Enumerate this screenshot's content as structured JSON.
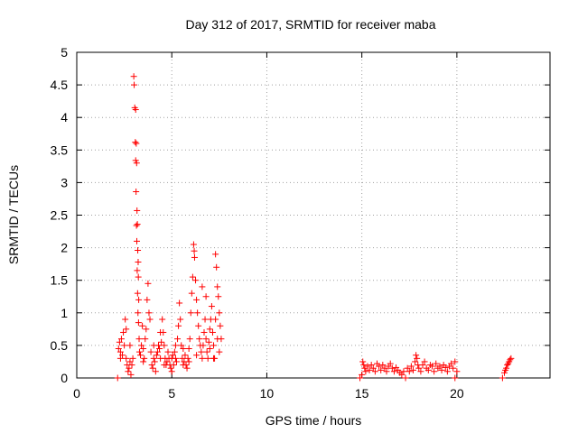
{
  "chart_data": {
    "type": "scatter",
    "title": "Day 312 of 2017, SRMTID for receiver maba",
    "xlabel": "GPS time / hours",
    "ylabel": "SRMTID / TECUs",
    "xlim": [
      0,
      24.9
    ],
    "ylim": [
      0,
      5
    ],
    "xticks": [
      0,
      5,
      10,
      15,
      20
    ],
    "xtick_labels": [
      "0",
      "5",
      "10",
      "15",
      "20"
    ],
    "yticks": [
      0,
      0.5,
      1,
      1.5,
      2,
      2.5,
      3,
      3.5,
      4,
      4.5,
      5
    ],
    "ytick_labels": [
      "0",
      "0.5",
      "1",
      "1.5",
      "2",
      "2.5",
      "3",
      "3.5",
      "4",
      "4.5",
      "5"
    ],
    "grid": true,
    "marker": "plus",
    "marker_color": "#ff0000",
    "series": [
      {
        "values": [
          [
            2.15,
            0.0
          ],
          [
            2.2,
            0.45
          ],
          [
            2.25,
            0.55
          ],
          [
            2.3,
            0.4
          ],
          [
            2.35,
            0.6
          ],
          [
            2.4,
            0.35
          ],
          [
            2.45,
            0.7
          ],
          [
            2.5,
            0.5
          ],
          [
            2.55,
            0.9
          ],
          [
            2.6,
            0.3
          ],
          [
            2.65,
            0.2
          ],
          [
            2.7,
            0.1
          ],
          [
            2.75,
            0.15
          ],
          [
            2.8,
            0.25
          ],
          [
            2.85,
            0.05
          ],
          [
            2.9,
            0.2
          ],
          [
            2.95,
            0.3
          ],
          [
            3.0,
            4.63
          ],
          [
            3.02,
            4.5
          ],
          [
            3.05,
            4.15
          ],
          [
            3.08,
            3.62
          ],
          [
            3.1,
            3.34
          ],
          [
            3.12,
            2.86
          ],
          [
            3.14,
            2.34
          ],
          [
            3.16,
            2.1
          ],
          [
            3.18,
            1.65
          ],
          [
            3.2,
            1.3
          ],
          [
            3.22,
            1.0
          ],
          [
            3.25,
            0.85
          ],
          [
            3.28,
            0.6
          ],
          [
            3.3,
            0.4
          ],
          [
            3.35,
            0.35
          ],
          [
            3.1,
            4.12
          ],
          [
            3.13,
            3.6
          ],
          [
            3.15,
            3.3
          ],
          [
            3.17,
            2.57
          ],
          [
            3.19,
            2.36
          ],
          [
            3.21,
            1.96
          ],
          [
            3.23,
            1.78
          ],
          [
            3.24,
            1.55
          ],
          [
            3.26,
            1.2
          ],
          [
            3.4,
            0.5
          ],
          [
            3.45,
            0.8
          ],
          [
            3.5,
            0.45
          ],
          [
            3.55,
            0.3
          ],
          [
            3.6,
            0.6
          ],
          [
            3.7,
            1.2
          ],
          [
            3.75,
            1.45
          ],
          [
            3.8,
            1.0
          ],
          [
            3.85,
            0.9
          ],
          [
            3.9,
            0.4
          ],
          [
            3.95,
            0.2
          ],
          [
            4.0,
            0.15
          ],
          [
            4.05,
            0.3
          ],
          [
            4.1,
            0.25
          ],
          [
            4.15,
            0.1
          ],
          [
            4.2,
            0.35
          ],
          [
            4.25,
            0.4
          ],
          [
            4.3,
            0.5
          ],
          [
            4.35,
            0.45
          ],
          [
            4.4,
            0.3
          ],
          [
            4.45,
            0.55
          ],
          [
            4.5,
            0.9
          ],
          [
            4.55,
            0.7
          ],
          [
            4.6,
            0.5
          ],
          [
            4.65,
            0.3
          ],
          [
            4.7,
            0.2
          ],
          [
            4.75,
            0.25
          ],
          [
            4.8,
            0.4
          ],
          [
            4.85,
            0.3
          ],
          [
            4.9,
            0.2
          ],
          [
            4.95,
            0.15
          ],
          [
            5.0,
            0.3
          ],
          [
            5.05,
            0.35
          ],
          [
            5.1,
            0.2
          ],
          [
            5.15,
            0.4
          ],
          [
            5.2,
            0.3
          ],
          [
            5.25,
            0.25
          ],
          [
            5.3,
            0.6
          ],
          [
            5.35,
            0.8
          ],
          [
            5.4,
            1.15
          ],
          [
            5.45,
            0.9
          ],
          [
            5.5,
            0.5
          ],
          [
            5.55,
            0.3
          ],
          [
            5.6,
            0.2
          ],
          [
            5.65,
            0.25
          ],
          [
            5.7,
            0.35
          ],
          [
            5.75,
            0.2
          ],
          [
            5.8,
            0.15
          ],
          [
            5.85,
            0.3
          ],
          [
            5.9,
            0.45
          ],
          [
            5.95,
            0.6
          ],
          [
            6.0,
            1.0
          ],
          [
            6.05,
            1.3
          ],
          [
            6.1,
            1.55
          ],
          [
            6.15,
            2.05
          ],
          [
            6.18,
            1.95
          ],
          [
            6.2,
            1.85
          ],
          [
            6.25,
            1.5
          ],
          [
            6.3,
            1.2
          ],
          [
            6.35,
            1.0
          ],
          [
            6.4,
            0.8
          ],
          [
            6.45,
            0.6
          ],
          [
            6.5,
            0.5
          ],
          [
            6.55,
            0.4
          ],
          [
            6.6,
            0.3
          ],
          [
            6.65,
            0.5
          ],
          [
            6.7,
            0.7
          ],
          [
            6.75,
            0.9
          ],
          [
            6.8,
            0.6
          ],
          [
            6.85,
            0.4
          ],
          [
            6.9,
            0.3
          ],
          [
            6.95,
            0.55
          ],
          [
            7.0,
            0.75
          ],
          [
            7.05,
            0.9
          ],
          [
            7.1,
            1.1
          ],
          [
            7.15,
            0.7
          ],
          [
            7.2,
            0.5
          ],
          [
            7.25,
            0.3
          ],
          [
            7.3,
            1.9
          ],
          [
            7.35,
            1.7
          ],
          [
            7.4,
            1.4
          ],
          [
            7.45,
            1.25
          ],
          [
            7.5,
            1.0
          ],
          [
            7.55,
            0.8
          ],
          [
            7.6,
            0.6
          ],
          [
            2.3,
            0.3
          ],
          [
            2.6,
            0.75
          ],
          [
            2.8,
            0.5
          ],
          [
            3.5,
            0.25
          ],
          [
            3.65,
            0.75
          ],
          [
            4.05,
            0.5
          ],
          [
            4.4,
            0.7
          ],
          [
            4.6,
            0.2
          ],
          [
            5.0,
            0.1
          ],
          [
            5.2,
            0.5
          ],
          [
            5.6,
            0.45
          ],
          [
            5.9,
            0.25
          ],
          [
            6.3,
            0.35
          ],
          [
            6.6,
            1.4
          ],
          [
            6.8,
            1.25
          ],
          [
            7.0,
            0.45
          ],
          [
            7.2,
            0.3
          ],
          [
            7.4,
            0.6
          ],
          [
            7.5,
            0.4
          ],
          [
            7.3,
            0.9
          ],
          [
            14.9,
            0.0
          ],
          [
            15.0,
            0.05
          ],
          [
            15.05,
            0.25
          ],
          [
            15.1,
            0.2
          ],
          [
            15.15,
            0.15
          ],
          [
            15.2,
            0.1
          ],
          [
            15.3,
            0.18
          ],
          [
            15.4,
            0.12
          ],
          [
            15.5,
            0.2
          ],
          [
            15.6,
            0.15
          ],
          [
            15.7,
            0.1
          ],
          [
            15.8,
            0.22
          ],
          [
            15.9,
            0.18
          ],
          [
            16.0,
            0.12
          ],
          [
            16.1,
            0.2
          ],
          [
            16.2,
            0.15
          ],
          [
            16.3,
            0.1
          ],
          [
            16.4,
            0.18
          ],
          [
            16.5,
            0.22
          ],
          [
            16.6,
            0.15
          ],
          [
            16.7,
            0.1
          ],
          [
            16.8,
            0.16
          ],
          [
            16.9,
            0.12
          ],
          [
            17.0,
            0.08
          ],
          [
            17.1,
            0.05
          ],
          [
            17.2,
            0.1
          ],
          [
            17.3,
            0.0
          ],
          [
            17.4,
            0.15
          ],
          [
            17.5,
            0.1
          ],
          [
            17.6,
            0.18
          ],
          [
            17.7,
            0.12
          ],
          [
            17.8,
            0.25
          ],
          [
            17.85,
            0.35
          ],
          [
            17.9,
            0.3
          ],
          [
            17.95,
            0.2
          ],
          [
            18.0,
            0.15
          ],
          [
            18.1,
            0.1
          ],
          [
            18.2,
            0.2
          ],
          [
            18.3,
            0.25
          ],
          [
            18.4,
            0.15
          ],
          [
            18.5,
            0.12
          ],
          [
            18.6,
            0.2
          ],
          [
            18.7,
            0.18
          ],
          [
            18.8,
            0.1
          ],
          [
            18.9,
            0.22
          ],
          [
            19.0,
            0.15
          ],
          [
            19.1,
            0.18
          ],
          [
            19.2,
            0.12
          ],
          [
            19.3,
            0.2
          ],
          [
            19.4,
            0.16
          ],
          [
            19.5,
            0.1
          ],
          [
            19.6,
            0.18
          ],
          [
            19.7,
            0.22
          ],
          [
            19.8,
            0.15
          ],
          [
            19.9,
            0.25
          ],
          [
            20.0,
            0.1
          ],
          [
            19.9,
            0.0
          ],
          [
            22.4,
            0.0
          ],
          [
            22.5,
            0.08
          ],
          [
            22.55,
            0.12
          ],
          [
            22.6,
            0.15
          ],
          [
            22.65,
            0.2
          ],
          [
            22.7,
            0.22
          ],
          [
            22.75,
            0.25
          ],
          [
            22.8,
            0.28
          ],
          [
            22.85,
            0.3
          ]
        ]
      }
    ]
  }
}
